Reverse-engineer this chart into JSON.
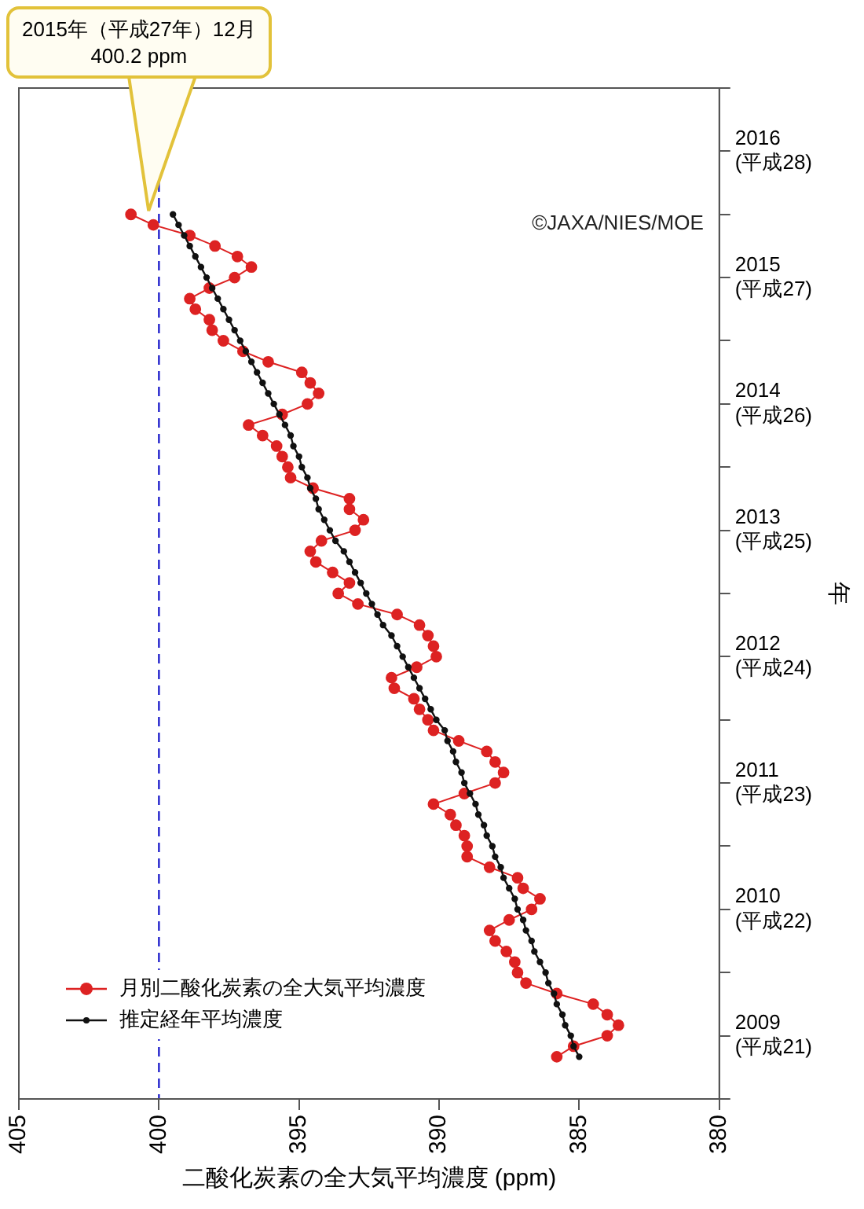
{
  "chart_data": {
    "type": "line",
    "orientation": "horizontal",
    "ylabel": "年",
    "xlabel": "二酸化炭素の全大気平均濃度 (ppm)",
    "x": [
      "2009-05",
      "2009-06",
      "2009-07",
      "2009-08",
      "2009-09",
      "2009-10",
      "2009-11",
      "2009-12",
      "2010-01",
      "2010-02",
      "2010-03",
      "2010-04",
      "2010-05",
      "2010-06",
      "2010-07",
      "2010-08",
      "2010-09",
      "2010-10",
      "2010-11",
      "2010-12",
      "2011-01",
      "2011-02",
      "2011-03",
      "2011-04",
      "2011-05",
      "2011-06",
      "2011-07",
      "2011-08",
      "2011-09",
      "2011-10",
      "2011-11",
      "2011-12",
      "2012-01",
      "2012-02",
      "2012-03",
      "2012-04",
      "2012-05",
      "2012-06",
      "2012-07",
      "2012-08",
      "2012-09",
      "2012-10",
      "2012-11",
      "2012-12",
      "2013-01",
      "2013-02",
      "2013-03",
      "2013-04",
      "2013-05",
      "2013-06",
      "2013-07",
      "2013-08",
      "2013-09",
      "2013-10",
      "2013-11",
      "2013-12",
      "2014-01",
      "2014-02",
      "2014-03",
      "2014-04",
      "2014-05",
      "2014-06",
      "2014-07",
      "2014-08",
      "2014-09",
      "2014-10",
      "2014-11",
      "2014-12",
      "2015-01",
      "2015-02",
      "2015-03",
      "2015-04",
      "2015-05",
      "2015-06",
      "2015-07",
      "2015-08",
      "2015-09",
      "2015-10",
      "2015-11",
      "2015-12",
      "2016-01"
    ],
    "series": [
      {
        "name": "月別二酸化炭素の全大気平均濃度",
        "color": "#dd2222",
        "values": [
          385.8,
          385.2,
          384.0,
          383.6,
          384.0,
          384.5,
          385.8,
          386.9,
          387.2,
          387.3,
          387.6,
          388.0,
          388.2,
          387.5,
          386.7,
          386.4,
          387.0,
          387.2,
          388.2,
          389.0,
          389.0,
          389.1,
          389.4,
          389.6,
          390.2,
          389.1,
          388.0,
          387.7,
          388.0,
          388.3,
          389.3,
          390.2,
          390.4,
          390.7,
          390.9,
          391.6,
          391.7,
          390.8,
          390.1,
          390.2,
          390.4,
          390.7,
          391.5,
          392.9,
          393.6,
          393.2,
          393.8,
          394.4,
          394.6,
          394.2,
          393.0,
          392.7,
          393.2,
          393.2,
          394.5,
          395.3,
          395.4,
          395.6,
          395.8,
          396.3,
          396.8,
          395.6,
          394.7,
          394.3,
          394.6,
          394.9,
          396.1,
          397.0,
          397.7,
          398.1,
          398.2,
          398.7,
          398.9,
          398.2,
          397.3,
          396.7,
          397.2,
          398.0,
          398.9,
          400.2,
          401.0
        ]
      },
      {
        "name": "推定経年平均濃度",
        "color": "#111111",
        "values": [
          385.0,
          385.2,
          385.3,
          385.5,
          385.6,
          385.8,
          385.9,
          386.1,
          386.2,
          386.4,
          386.6,
          386.7,
          386.9,
          387.0,
          387.2,
          387.3,
          387.5,
          387.7,
          387.8,
          388.0,
          388.1,
          388.3,
          388.4,
          388.6,
          388.7,
          388.9,
          389.1,
          389.2,
          389.4,
          389.5,
          389.7,
          389.8,
          390.1,
          390.3,
          390.5,
          390.7,
          390.9,
          391.1,
          391.3,
          391.5,
          391.7,
          392.0,
          392.2,
          392.4,
          392.6,
          392.8,
          393.0,
          393.2,
          393.4,
          393.7,
          393.9,
          394.1,
          394.3,
          394.4,
          394.6,
          394.7,
          394.9,
          395.0,
          395.2,
          395.3,
          395.5,
          395.7,
          395.9,
          396.1,
          396.3,
          396.5,
          396.7,
          396.9,
          397.1,
          397.3,
          397.5,
          397.7,
          397.9,
          398.1,
          398.3,
          398.5,
          398.7,
          398.9,
          399.1,
          399.3,
          399.5
        ]
      }
    ],
    "ylim": [
      "2009",
      "2017"
    ],
    "yticks": [
      {
        "value": "2009",
        "label": null
      },
      {
        "value": "2009-07-01",
        "label": "2009\n(平成21)"
      },
      {
        "value": "2010",
        "label": null
      },
      {
        "value": "2010-07-01",
        "label": "2010\n(平成22)"
      },
      {
        "value": "2011",
        "label": null
      },
      {
        "value": "2011-07-01",
        "label": "2011\n(平成23)"
      },
      {
        "value": "2012",
        "label": null
      },
      {
        "value": "2012-07-01",
        "label": "2012\n(平成24)"
      },
      {
        "value": "2013",
        "label": null
      },
      {
        "value": "2013-07-01",
        "label": "2013\n(平成25)"
      },
      {
        "value": "2014",
        "label": null
      },
      {
        "value": "2014-07-01",
        "label": "2014\n(平成26)"
      },
      {
        "value": "2015",
        "label": null
      },
      {
        "value": "2015-07-01",
        "label": "2015\n(平成27)"
      },
      {
        "value": "2016",
        "label": null
      },
      {
        "value": "2016-07-01",
        "label": "2016\n(平成28)"
      },
      {
        "value": "2017",
        "label": null
      }
    ],
    "xlim": [
      405,
      380
    ],
    "xticks": [
      405,
      400,
      395,
      390,
      385,
      380
    ],
    "ref_lines": [
      {
        "axis": "x",
        "value": 400,
        "color": "#2222cc",
        "line_style": "dashed"
      }
    ],
    "annotations": [
      {
        "text": "2015年（平成27年）12月\n400.2 ppm",
        "x": 400.2,
        "y": "2015-12-15"
      },
      "©JAXA/NIES/MOE"
    ],
    "marker": "circle",
    "legend": "bottom left",
    "grid": false
  }
}
